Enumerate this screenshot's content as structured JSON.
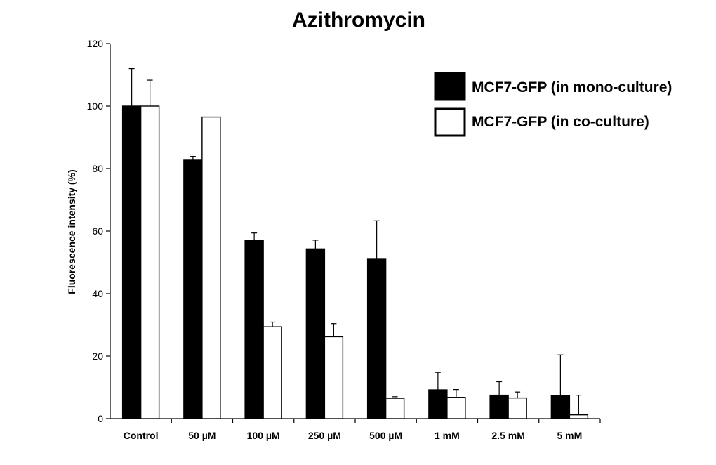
{
  "chart_data": {
    "type": "bar",
    "title": "Azithromycin",
    "xlabel": "",
    "ylabel": "Fluorescence intensity (%)",
    "ylim": [
      0,
      120
    ],
    "yticks": [
      "0",
      "20",
      "40",
      "60",
      "80",
      "100",
      "120"
    ],
    "grid": false,
    "legend_position": "top-right",
    "categories": [
      "Control",
      "50  µM",
      "100  µM",
      "250  µM",
      "500 µM",
      "1 mM",
      "2.5 mM",
      "5 mM"
    ],
    "series": [
      {
        "name": "MCF7-GFP (in mono-culture)",
        "color": "#000000",
        "values": [
          100,
          82.7,
          57,
          54.3,
          51,
          9.2,
          7.5,
          7.4
        ],
        "errors": [
          12,
          1.2,
          2.4,
          2.8,
          12.3,
          5.6,
          4.3,
          13
        ]
      },
      {
        "name": "MCF7-GFP (in co-culture)",
        "color": "#ffffff",
        "values": [
          100,
          96.5,
          29.4,
          26.2,
          6.5,
          6.8,
          6.6,
          1.2
        ],
        "errors": [
          8.3,
          0,
          1.5,
          4.2,
          0.5,
          2.5,
          1.9,
          6.3
        ]
      }
    ]
  }
}
